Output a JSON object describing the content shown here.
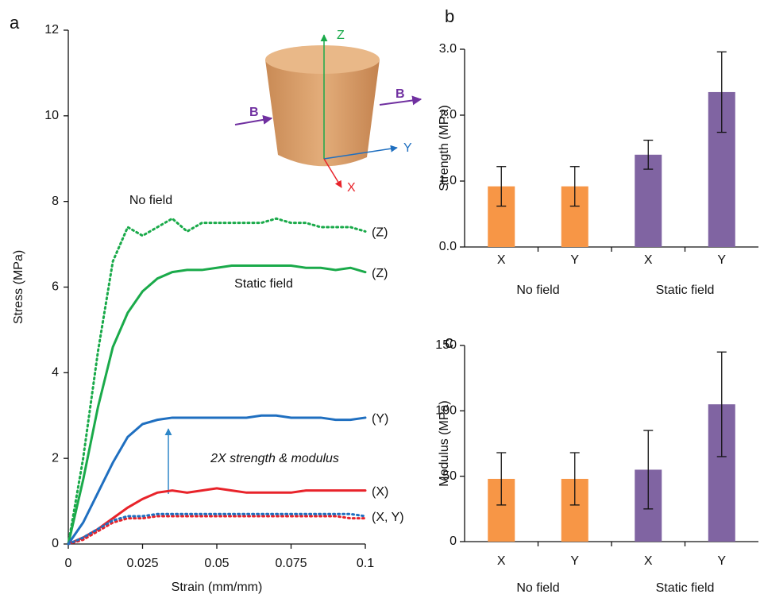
{
  "chart_data": [
    {
      "type": "line",
      "panel": "a",
      "xlabel": "Strain (mm/mm)",
      "ylabel": "Stress (MPa)",
      "xlim": [
        0,
        0.1
      ],
      "ylim": [
        0,
        12
      ],
      "xticks": [
        0,
        0.025,
        0.05,
        0.075,
        0.1
      ],
      "yticks": [
        0,
        2,
        4,
        6,
        8,
        10,
        12
      ],
      "x": [
        0,
        0.005,
        0.01,
        0.015,
        0.02,
        0.025,
        0.03,
        0.035,
        0.04,
        0.045,
        0.05,
        0.055,
        0.06,
        0.065,
        0.07,
        0.075,
        0.08,
        0.085,
        0.09,
        0.095,
        0.1
      ],
      "series": [
        {
          "name": "(Z)",
          "color": "#1aaa4a",
          "dashed": true,
          "values": [
            0,
            2.0,
            4.5,
            6.6,
            7.4,
            7.2,
            7.4,
            7.6,
            7.3,
            7.5,
            7.5,
            7.5,
            7.5,
            7.5,
            7.6,
            7.5,
            7.5,
            7.4,
            7.4,
            7.4,
            7.3
          ]
        },
        {
          "name": "(Z)",
          "color": "#1aaa4a",
          "dashed": false,
          "values": [
            0,
            1.5,
            3.2,
            4.6,
            5.4,
            5.9,
            6.2,
            6.35,
            6.4,
            6.4,
            6.45,
            6.5,
            6.5,
            6.5,
            6.5,
            6.5,
            6.45,
            6.45,
            6.4,
            6.45,
            6.35
          ]
        },
        {
          "name": "(Y)",
          "color": "#1f6fc0",
          "dashed": false,
          "values": [
            0,
            0.5,
            1.2,
            1.9,
            2.5,
            2.8,
            2.9,
            2.95,
            2.95,
            2.95,
            2.95,
            2.95,
            2.95,
            3.0,
            3.0,
            2.95,
            2.95,
            2.95,
            2.9,
            2.9,
            2.95
          ]
        },
        {
          "name": "(X)",
          "color": "#e8232a",
          "dashed": false,
          "values": [
            0,
            0.15,
            0.35,
            0.6,
            0.85,
            1.05,
            1.2,
            1.25,
            1.2,
            1.25,
            1.3,
            1.25,
            1.2,
            1.2,
            1.2,
            1.2,
            1.25,
            1.25,
            1.25,
            1.25,
            1.25
          ]
        },
        {
          "color": "#e8232a",
          "dashed": true,
          "values": [
            0,
            0.1,
            0.3,
            0.5,
            0.6,
            0.6,
            0.65,
            0.65,
            0.65,
            0.65,
            0.65,
            0.65,
            0.65,
            0.65,
            0.65,
            0.65,
            0.65,
            0.65,
            0.65,
            0.6,
            0.6
          ]
        },
        {
          "name": "(X, Y)",
          "color": "#1f6fc0",
          "dashed": true,
          "values": [
            0,
            0.15,
            0.35,
            0.55,
            0.65,
            0.65,
            0.7,
            0.7,
            0.7,
            0.7,
            0.7,
            0.7,
            0.7,
            0.7,
            0.7,
            0.7,
            0.7,
            0.7,
            0.7,
            0.7,
            0.65
          ]
        }
      ],
      "annotations": [
        "No field",
        "Static field",
        "2X strength & modulus"
      ],
      "inset_labels": [
        "Z",
        "Y",
        "X",
        "B",
        "B"
      ]
    },
    {
      "type": "bar",
      "panel": "b",
      "ylabel": "Strength (MPa)",
      "categories": [
        "X",
        "Y",
        "X",
        "Y"
      ],
      "groups": [
        "No field",
        "Static field"
      ],
      "values": [
        0.92,
        0.92,
        1.4,
        2.35
      ],
      "errors": [
        0.3,
        0.3,
        0.22,
        0.61
      ],
      "colors": [
        "#f79646",
        "#f79646",
        "#8064a2",
        "#8064a2"
      ],
      "ylim": [
        0,
        3
      ],
      "yticks": [
        {
          "value": 0,
          "label": "0.0"
        },
        {
          "value": 1,
          "label": "1.0"
        },
        {
          "value": 2,
          "label": "2.0"
        },
        {
          "value": 3,
          "label": "3.0"
        }
      ]
    },
    {
      "type": "bar",
      "panel": "c",
      "ylabel": "Modulus (MPa)",
      "categories": [
        "X",
        "Y",
        "X",
        "Y"
      ],
      "groups": [
        "No field",
        "Static field"
      ],
      "values": [
        48,
        48,
        55,
        105
      ],
      "errors": [
        20,
        20,
        30,
        40
      ],
      "colors": [
        "#f79646",
        "#f79646",
        "#8064a2",
        "#8064a2"
      ],
      "ylim": [
        0,
        150
      ],
      "yticks": [
        0,
        50,
        100,
        150
      ]
    }
  ]
}
